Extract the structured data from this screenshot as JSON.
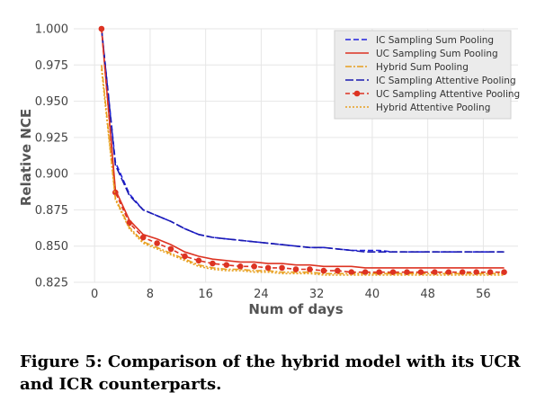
{
  "caption": "Figure 5: Comparison of the hybrid model with its UCR and ICR counterparts.",
  "chart_data": {
    "type": "line",
    "xlabel": "Num of days",
    "ylabel": "Relative NCE",
    "xlim": [
      -3,
      61
    ],
    "ylim": [
      0.825,
      1.0
    ],
    "xticks": [
      "0",
      "8",
      "16",
      "24",
      "32",
      "40",
      "48",
      "56"
    ],
    "xtick_values": [
      0,
      8,
      16,
      24,
      32,
      40,
      48,
      56
    ],
    "yticks": [
      "0.825",
      "0.850",
      "0.875",
      "0.900",
      "0.925",
      "0.950",
      "0.975",
      "1.000"
    ],
    "ytick_values": [
      0.825,
      0.85,
      0.875,
      0.9,
      0.925,
      0.95,
      0.975,
      1.0
    ],
    "grid": true,
    "legend_position": "top-right",
    "x": [
      1,
      3,
      5,
      7,
      9,
      11,
      13,
      15,
      17,
      19,
      21,
      23,
      25,
      27,
      29,
      31,
      33,
      35,
      37,
      39,
      41,
      43,
      45,
      47,
      49,
      51,
      53,
      55,
      57,
      59
    ],
    "series": [
      {
        "name": "IC Sampling Sum Pooling",
        "color": "#2222dd",
        "dash": "6,3",
        "marker": false,
        "values": [
          1.0,
          0.908,
          0.886,
          0.875,
          0.871,
          0.867,
          0.862,
          0.858,
          0.856,
          0.855,
          0.854,
          0.853,
          0.852,
          0.851,
          0.85,
          0.849,
          0.849,
          0.848,
          0.847,
          0.847,
          0.847,
          0.846,
          0.846,
          0.846,
          0.846,
          0.846,
          0.846,
          0.846,
          0.846,
          0.846
        ]
      },
      {
        "name": "UC Sampling Sum Pooling",
        "color": "#dd3322",
        "dash": "",
        "marker": false,
        "values": [
          1.0,
          0.889,
          0.868,
          0.858,
          0.855,
          0.851,
          0.846,
          0.843,
          0.841,
          0.84,
          0.839,
          0.839,
          0.838,
          0.838,
          0.837,
          0.837,
          0.836,
          0.836,
          0.836,
          0.835,
          0.835,
          0.835,
          0.835,
          0.835,
          0.835,
          0.835,
          0.835,
          0.835,
          0.835,
          0.835
        ]
      },
      {
        "name": "Hybrid Sum Pooling",
        "color": "#e8a020",
        "dash": "7,2,2,2",
        "marker": false,
        "values": [
          0.975,
          0.883,
          0.863,
          0.853,
          0.849,
          0.845,
          0.841,
          0.837,
          0.835,
          0.834,
          0.834,
          0.833,
          0.833,
          0.832,
          0.832,
          0.832,
          0.831,
          0.831,
          0.831,
          0.831,
          0.831,
          0.831,
          0.831,
          0.831,
          0.831,
          0.831,
          0.831,
          0.831,
          0.831,
          0.831
        ]
      },
      {
        "name": "IC Sampling Attentive Pooling",
        "color": "#1a1ab0",
        "dash": "9,3",
        "marker": false,
        "values": [
          1.0,
          0.906,
          0.885,
          0.875,
          0.871,
          0.867,
          0.862,
          0.858,
          0.856,
          0.855,
          0.854,
          0.853,
          0.852,
          0.851,
          0.85,
          0.849,
          0.849,
          0.848,
          0.847,
          0.846,
          0.846,
          0.846,
          0.846,
          0.846,
          0.846,
          0.846,
          0.846,
          0.846,
          0.846,
          0.846
        ]
      },
      {
        "name": "UC Sampling Attentive Pooling",
        "color": "#dd3322",
        "dash": "5,3",
        "marker": true,
        "values": [
          1.0,
          0.887,
          0.866,
          0.856,
          0.852,
          0.848,
          0.843,
          0.84,
          0.838,
          0.837,
          0.836,
          0.836,
          0.835,
          0.835,
          0.834,
          0.834,
          0.833,
          0.833,
          0.832,
          0.832,
          0.832,
          0.832,
          0.832,
          0.832,
          0.832,
          0.832,
          0.832,
          0.832,
          0.832,
          0.832
        ]
      },
      {
        "name": "Hybrid Attentive Pooling",
        "color": "#e8a020",
        "dash": "2,2",
        "marker": false,
        "values": [
          0.972,
          0.882,
          0.862,
          0.852,
          0.848,
          0.844,
          0.84,
          0.836,
          0.834,
          0.833,
          0.833,
          0.832,
          0.832,
          0.831,
          0.831,
          0.831,
          0.83,
          0.83,
          0.83,
          0.83,
          0.83,
          0.83,
          0.83,
          0.83,
          0.83,
          0.83,
          0.83,
          0.83,
          0.83,
          0.83
        ]
      }
    ]
  }
}
